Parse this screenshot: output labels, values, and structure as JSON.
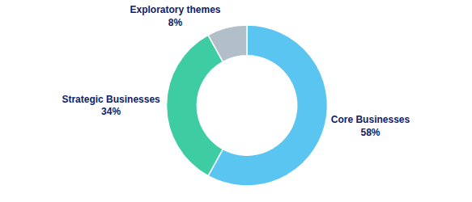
{
  "chart_data": {
    "type": "donut",
    "categories": [
      "Core Businesses",
      "Strategic Businesses",
      "Exploratory themes"
    ],
    "values": [
      58,
      34,
      8
    ],
    "value_labels": [
      "58%",
      "34%",
      "8%"
    ],
    "colors": [
      "#5BC5F2",
      "#3ECDA3",
      "#B2BEC8"
    ],
    "data_labels": true
  }
}
